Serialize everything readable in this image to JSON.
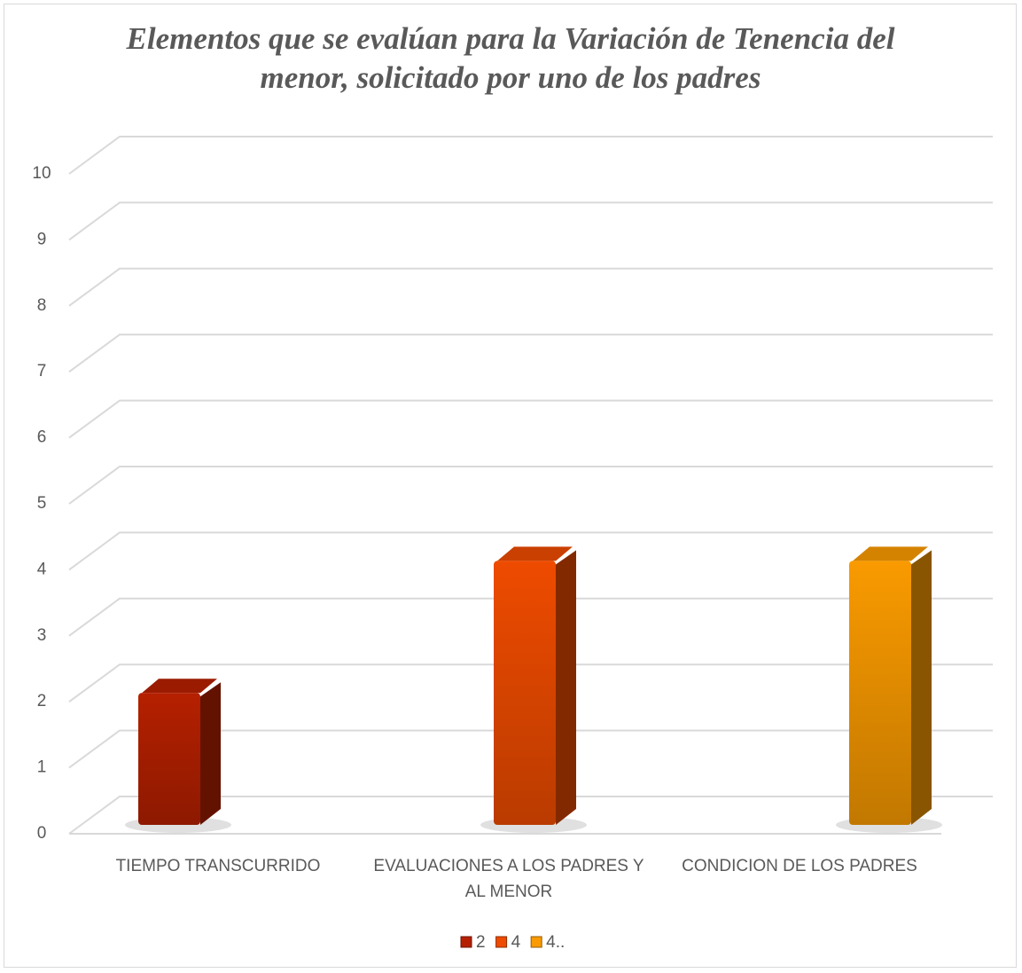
{
  "chart_data": {
    "type": "bar3d",
    "title": "Elementos que se evalúan para la Variación de Tenencia del menor, solicitado por uno de los padres",
    "categories": [
      "TIEMPO TRANSCURRIDO",
      "EVALUACIONES A LOS PADRES Y AL MENOR",
      "CONDICION DE LOS PADRES"
    ],
    "series": [
      {
        "name": "2",
        "color": "#b52000",
        "values": [
          2,
          null,
          null
        ]
      },
      {
        "name": "4",
        "color": "#ee4b00",
        "values": [
          null,
          4,
          null
        ]
      },
      {
        "name": "4..",
        "color": "#f99a00",
        "values": [
          null,
          null,
          4
        ]
      }
    ],
    "ylim": [
      0,
      10
    ],
    "yticks": [
      0,
      1,
      2,
      3,
      4,
      5,
      6,
      7,
      8,
      9,
      10
    ],
    "grid": true,
    "legend": "bottom"
  }
}
